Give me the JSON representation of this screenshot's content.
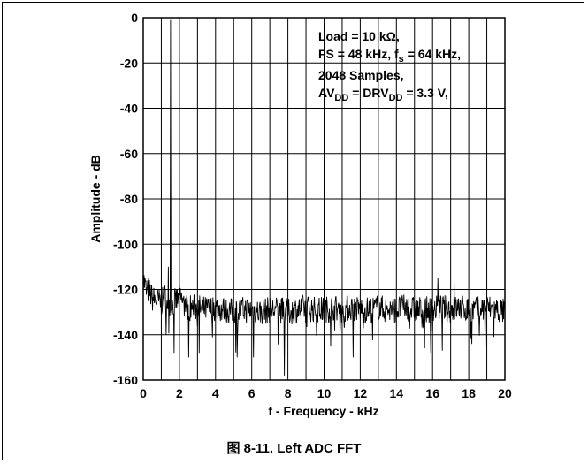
{
  "caption": "图 8-11. Left ADC FFT",
  "chart_data": {
    "type": "line",
    "xlabel": "f - Frequency - kHz",
    "ylabel": "Amplitude - dB",
    "xlim": [
      0,
      20
    ],
    "ylim": [
      -160,
      0
    ],
    "xticks": [
      0,
      2,
      4,
      6,
      8,
      10,
      12,
      14,
      16,
      18,
      20
    ],
    "yticks": [
      0,
      -20,
      -40,
      -60,
      -80,
      -100,
      -120,
      -140,
      -160
    ],
    "grid": true,
    "annotation": {
      "line1": "Load = 10 kΩ,",
      "line2_a": "FS = 48 kHz, f",
      "line2_sub": "s",
      "line2_b": " = 64 kHz,",
      "line3": "2048 Samples,",
      "line4_a": "AV",
      "line4_sub1": "DD",
      "line4_b": " = DRV",
      "line4_sub2": "DD",
      "line4_c": " = 3.3 V,"
    },
    "series": [
      {
        "signal_frequency_khz": 1.5,
        "signal_peak_db": -1,
        "noise_floor_db": -128,
        "x": [
          0,
          0.1,
          0.2,
          0.3,
          0.5,
          0.8,
          1.0,
          1.2,
          1.4,
          1.5,
          1.6,
          1.8,
          2.0,
          2.5,
          3.0,
          3.5,
          4.0,
          4.5,
          5.0,
          5.5,
          6.0,
          6.5,
          7.0,
          7.5,
          8.0,
          8.5,
          9.0,
          9.5,
          10.0,
          10.5,
          11.0,
          11.5,
          12.0,
          12.5,
          13.0,
          13.5,
          14.0,
          14.5,
          15.0,
          15.5,
          16.0,
          16.5,
          17.0,
          17.5,
          18.0,
          18.5,
          19.0,
          19.5,
          20.0
        ],
        "y": [
          -115,
          -118,
          -122,
          -120,
          -124,
          -125,
          -126,
          -123,
          -126,
          -1,
          -127,
          -125,
          -124,
          -128,
          -128,
          -129,
          -128,
          -129,
          -130,
          -129,
          -129,
          -130,
          -129,
          -129,
          -130,
          -129,
          -128,
          -129,
          -129,
          -128,
          -129,
          -128,
          -129,
          -129,
          -128,
          -129,
          -129,
          -128,
          -129,
          -129,
          -129,
          -128,
          -129,
          -128,
          -129,
          -129,
          -128,
          -129,
          -130
        ],
        "spurs": [
          {
            "x": 1.5,
            "y": -1
          },
          {
            "x": 1.4,
            "y": -110
          },
          {
            "x": 16.3,
            "y": -115
          },
          {
            "x": 17.2,
            "y": -117
          },
          {
            "x": 1.7,
            "y": -148
          },
          {
            "x": 2.5,
            "y": -150
          },
          {
            "x": 3.1,
            "y": -148
          },
          {
            "x": 5.2,
            "y": -150
          },
          {
            "x": 6.1,
            "y": -150
          },
          {
            "x": 7.8,
            "y": -158
          },
          {
            "x": 11.6,
            "y": -150
          },
          {
            "x": 15.9,
            "y": -148
          },
          {
            "x": 18.9,
            "y": -145
          },
          {
            "x": 19.4,
            "y": -141
          }
        ]
      }
    ]
  }
}
